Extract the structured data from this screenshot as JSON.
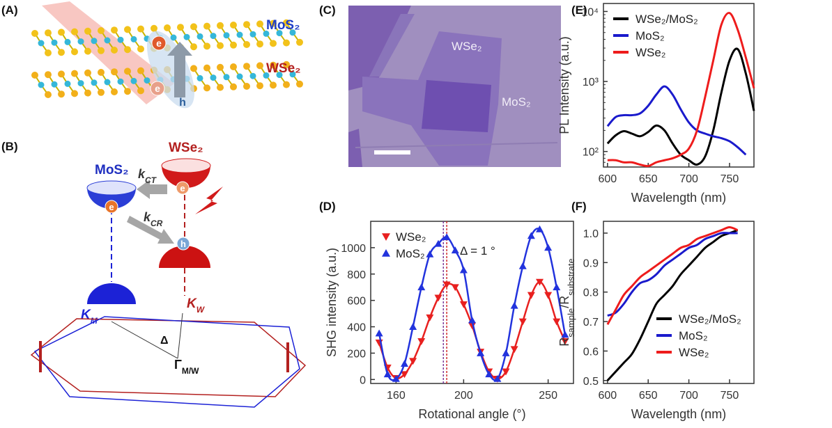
{
  "panel_labels": [
    "(A)",
    "(B)",
    "(C)",
    "(D)",
    "(E)",
    "(F)"
  ],
  "diagram_a": {
    "top_layer": "MoS₂",
    "bottom_layer": "WSe₂",
    "electron_top": "e",
    "electron_bottom": "e",
    "hole": "h"
  },
  "diagram_b": {
    "mos2": "MoS₂",
    "wse2": "WSe₂",
    "k_ct": {
      "base": "k",
      "sub": "CT"
    },
    "k_cr": {
      "base": "k",
      "sub": "CR"
    },
    "electron_w": "e",
    "electron_m": "e",
    "hole": "h",
    "k_m": {
      "base": "K",
      "sub": "M"
    },
    "k_w": {
      "base": "K",
      "sub": "W"
    },
    "delta": "Δ",
    "gamma": {
      "base": "Γ",
      "sub": "M/W"
    }
  },
  "micrograph_c": {
    "flake_1": "WSe₂",
    "flake_2": "MoS₂"
  },
  "chart_data": [
    {
      "type": "scatter",
      "fit_line": true,
      "xlabel": "Rotational angle (°)",
      "ylabel": "SHG intensity (a.u.)",
      "x": [
        150,
        155,
        160,
        165,
        170,
        175,
        180,
        185,
        190,
        195,
        200,
        205,
        210,
        215,
        220,
        225,
        230,
        235,
        240,
        245,
        250,
        255,
        260
      ],
      "series": [
        {
          "name": "WSe₂",
          "color": "#e8201f",
          "marker": "triangle-down",
          "values": [
            280,
            90,
            10,
            40,
            140,
            290,
            470,
            620,
            720,
            700,
            570,
            410,
            210,
            60,
            5,
            60,
            230,
            440,
            640,
            740,
            640,
            440,
            290
          ]
        },
        {
          "name": "MoS₂",
          "color": "#2233dd",
          "marker": "triangle-up",
          "values": [
            350,
            40,
            5,
            120,
            400,
            700,
            950,
            1030,
            1080,
            980,
            830,
            450,
            200,
            40,
            5,
            200,
            560,
            860,
            1090,
            1140,
            1000,
            700,
            340
          ]
        }
      ],
      "xlim": [
        145,
        265
      ],
      "ylim": [
        -30,
        1200
      ],
      "xticks": [
        160,
        200,
        250
      ],
      "yticks": [
        0,
        200,
        400,
        600,
        800,
        1000
      ],
      "vlines": [
        188,
        190
      ],
      "annotation": "Δ = 1 °",
      "legend": "upper-left"
    },
    {
      "type": "line",
      "log_y": true,
      "xlabel": "Wavelength (nm)",
      "ylabel": "PL Intensity (a.u.)",
      "x": [
        600,
        610,
        620,
        630,
        640,
        650,
        660,
        670,
        680,
        690,
        700,
        710,
        720,
        730,
        740,
        750,
        760,
        770,
        780
      ],
      "series": [
        {
          "name": "WSe₂/MoS₂",
          "color": "#000000",
          "values": [
            130,
            170,
            195,
            180,
            165,
            190,
            235,
            200,
            130,
            90,
            75,
            65,
            85,
            200,
            700,
            2000,
            2900,
            1300,
            380
          ]
        },
        {
          "name": "MoS₂",
          "color": "#1a1acc",
          "values": [
            230,
            310,
            330,
            330,
            350,
            450,
            650,
            850,
            650,
            400,
            260,
            200,
            180,
            165,
            155,
            140,
            115,
            90,
            null
          ]
        },
        {
          "name": "WSe₂",
          "color": "#ee1c1c",
          "values": [
            75,
            75,
            70,
            70,
            65,
            62,
            70,
            75,
            80,
            90,
            110,
            200,
            600,
            2000,
            6500,
            9500,
            5500,
            2200,
            800
          ]
        }
      ],
      "xlim": [
        595,
        780
      ],
      "ylim": [
        60,
        13000
      ],
      "xticks": [
        600,
        650,
        700,
        750
      ],
      "yticks": [
        {
          "value": 100,
          "label": "10²"
        },
        {
          "value": 1000,
          "label": "10³"
        },
        {
          "value": 10000,
          "label": "10⁴"
        }
      ],
      "legend": "upper-left"
    },
    {
      "type": "line",
      "xlabel": "Wavelength (nm)",
      "ylabel": [
        "R",
        "sample",
        "/R",
        "substrate"
      ],
      "x": [
        600,
        610,
        620,
        630,
        640,
        650,
        660,
        670,
        680,
        690,
        700,
        710,
        720,
        730,
        740,
        750,
        760
      ],
      "series": [
        {
          "name": "WSe₂/MoS₂",
          "color": "#000000",
          "values": [
            0.5,
            0.53,
            0.56,
            0.59,
            0.64,
            0.7,
            0.76,
            0.79,
            0.82,
            0.86,
            0.89,
            0.92,
            0.95,
            0.97,
            0.99,
            1.0,
            1.01
          ]
        },
        {
          "name": "MoS₂",
          "color": "#1a1acc",
          "values": [
            0.72,
            0.73,
            0.76,
            0.8,
            0.83,
            0.84,
            0.86,
            0.89,
            0.91,
            0.93,
            0.95,
            0.96,
            0.98,
            0.99,
            1.0,
            1.0,
            1.0
          ]
        },
        {
          "name": "WSe₂",
          "color": "#ee1c1c",
          "values": [
            0.69,
            0.74,
            0.79,
            0.82,
            0.85,
            0.87,
            0.89,
            0.91,
            0.93,
            0.95,
            0.96,
            0.98,
            0.99,
            1.0,
            1.01,
            1.02,
            1.01
          ]
        }
      ],
      "xlim": [
        595,
        780
      ],
      "ylim": [
        0.49,
        1.04
      ],
      "xticks": [
        600,
        650,
        700,
        750
      ],
      "yticks": [
        0.5,
        0.6,
        0.7,
        0.8,
        0.9,
        {
          "value": 1,
          "label": "1.0"
        }
      ],
      "legend": "lower-right"
    }
  ]
}
